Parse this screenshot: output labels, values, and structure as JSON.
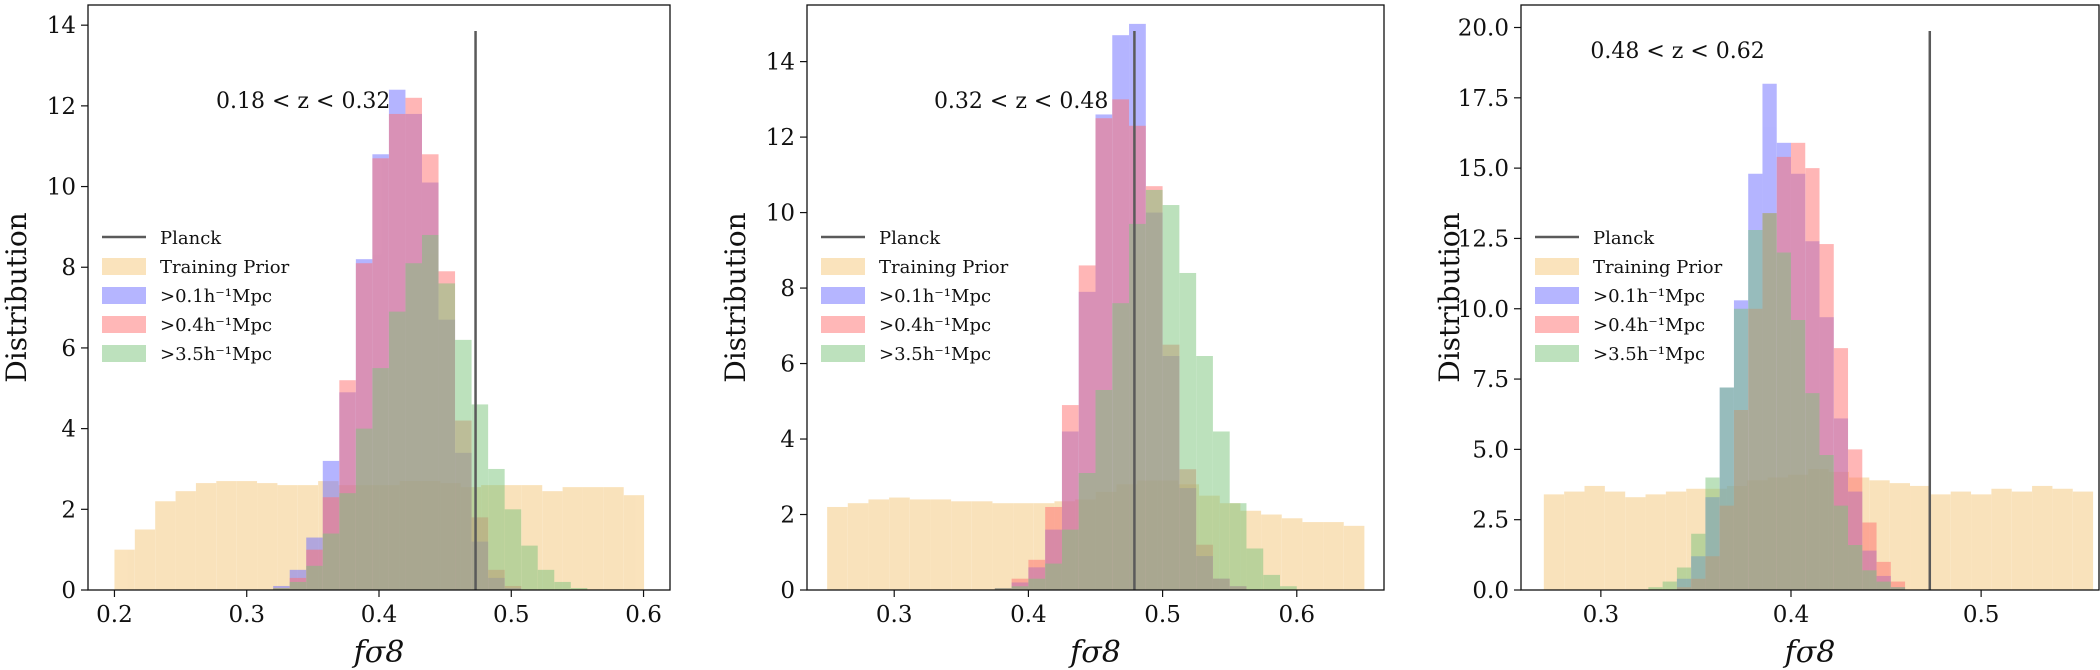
{
  "chart_data": [
    {
      "type": "histogram",
      "panel": "left",
      "title": "0.18 < z < 0.32",
      "xlabel": "fσ8",
      "ylabel": "Distribution",
      "xlim": [
        0.18,
        0.62
      ],
      "ylim": [
        0,
        14.5
      ],
      "xticks": [
        0.2,
        0.3,
        0.4,
        0.5,
        0.6
      ],
      "xtick_labels": [
        "0.2",
        "0.3",
        "0.4",
        "0.5",
        "0.6"
      ],
      "yticks": [
        0,
        2,
        4,
        6,
        8,
        10,
        12,
        14
      ],
      "ytick_labels": [
        "0",
        "2",
        "4",
        "6",
        "8",
        "10",
        "12",
        "14"
      ],
      "planck": 0.473,
      "legend_position": "center-left",
      "series": [
        {
          "name": "Training Prior",
          "color": "#f5c77a",
          "start": 0.2,
          "step": 0.0154,
          "values": [
            1.0,
            1.5,
            2.2,
            2.45,
            2.65,
            2.7,
            2.7,
            2.65,
            2.6,
            2.6,
            2.7,
            2.6,
            2.6,
            2.6,
            2.7,
            2.7,
            2.65,
            2.55,
            2.6,
            2.6,
            2.6,
            2.45,
            2.55,
            2.55,
            2.55,
            2.35
          ]
        },
        {
          "name": ">0.1h⁻¹Mpc",
          "color": "#6b6bff",
          "start": 0.32,
          "step": 0.0125,
          "values": [
            0.1,
            0.5,
            1.3,
            3.2,
            4.9,
            8.2,
            10.8,
            12.4,
            11.8,
            10.1,
            6.7,
            3.4,
            1.2,
            0.3,
            0.05
          ]
        },
        {
          "name": ">0.4h⁻¹Mpc",
          "color": "#ff7070",
          "start": 0.32,
          "step": 0.0125,
          "values": [
            0.05,
            0.3,
            1.0,
            2.3,
            5.2,
            8.1,
            10.7,
            11.8,
            12.2,
            10.8,
            7.9,
            4.2,
            1.8,
            0.5,
            0.1
          ]
        },
        {
          "name": ">3.5h⁻¹Mpc",
          "color": "#7cc47c",
          "start": 0.32,
          "step": 0.0125,
          "values": [
            0.05,
            0.2,
            0.6,
            1.4,
            2.4,
            4.0,
            5.5,
            6.9,
            8.1,
            8.8,
            7.6,
            6.2,
            4.6,
            3.0,
            2.0,
            1.1,
            0.5,
            0.2,
            0.05
          ]
        }
      ]
    },
    {
      "type": "histogram",
      "panel": "middle",
      "title": "0.32 < z < 0.48",
      "xlabel": "fσ8",
      "ylabel": "Distribution",
      "xlim": [
        0.235,
        0.665
      ],
      "ylim": [
        0,
        15.5
      ],
      "xticks": [
        0.3,
        0.4,
        0.5,
        0.6
      ],
      "xtick_labels": [
        "0.3",
        "0.4",
        "0.5",
        "0.6"
      ],
      "yticks": [
        0,
        2,
        4,
        6,
        8,
        10,
        12,
        14
      ],
      "ytick_labels": [
        "0",
        "2",
        "4",
        "6",
        "8",
        "10",
        "12",
        "14"
      ],
      "planck": 0.479,
      "legend_position": "center-left",
      "series": [
        {
          "name": "Training Prior",
          "color": "#f5c77a",
          "start": 0.25,
          "step": 0.0154,
          "values": [
            2.2,
            2.3,
            2.4,
            2.45,
            2.4,
            2.4,
            2.35,
            2.35,
            2.3,
            2.3,
            2.3,
            2.35,
            2.4,
            2.6,
            2.8,
            2.9,
            2.9,
            2.8,
            2.5,
            2.3,
            2.1,
            2.0,
            1.9,
            1.8,
            1.8,
            1.7
          ]
        },
        {
          "name": ">0.1h⁻¹Mpc",
          "color": "#6b6bff",
          "start": 0.375,
          "step": 0.0125,
          "values": [
            0.05,
            0.2,
            0.6,
            1.6,
            4.2,
            7.9,
            12.6,
            14.7,
            15.0,
            10.0,
            6.2,
            2.7,
            0.9,
            0.3,
            0.1
          ]
        },
        {
          "name": ">0.4h⁻¹Mpc",
          "color": "#ff7070",
          "start": 0.375,
          "step": 0.0125,
          "values": [
            0.05,
            0.3,
            0.8,
            2.2,
            4.9,
            8.6,
            12.5,
            13.0,
            12.3,
            10.7,
            6.5,
            3.2,
            1.2,
            0.3,
            0.1
          ]
        },
        {
          "name": ">3.5h⁻¹Mpc",
          "color": "#7cc47c",
          "start": 0.375,
          "step": 0.0125,
          "values": [
            0.05,
            0.1,
            0.3,
            0.7,
            1.6,
            3.1,
            5.3,
            7.6,
            9.7,
            10.6,
            10.2,
            8.4,
            6.2,
            4.2,
            2.3,
            1.1,
            0.4,
            0.1
          ]
        }
      ]
    },
    {
      "type": "histogram",
      "panel": "right",
      "title": "0.48 < z < 0.62",
      "xlabel": "fσ8",
      "ylabel": "Distribution",
      "xlim": [
        0.258,
        0.562
      ],
      "ylim": [
        0,
        20.8
      ],
      "xticks": [
        0.3,
        0.4,
        0.5
      ],
      "xtick_labels": [
        "0.3",
        "0.4",
        "0.5"
      ],
      "yticks": [
        0,
        2.5,
        5,
        7.5,
        10,
        12.5,
        15,
        17.5,
        20
      ],
      "ytick_labels": [
        "0.0",
        "2.5",
        "5.0",
        "7.5",
        "10.0",
        "12.5",
        "15.0",
        "17.5",
        "20.0"
      ],
      "planck": 0.473,
      "legend_position": "center-left",
      "series": [
        {
          "name": "Training Prior",
          "color": "#f5c77a",
          "start": 0.27,
          "step": 0.0107,
          "values": [
            3.4,
            3.5,
            3.7,
            3.5,
            3.3,
            3.4,
            3.5,
            3.6,
            3.6,
            3.7,
            3.9,
            4.0,
            4.1,
            4.3,
            4.2,
            4.0,
            3.9,
            3.8,
            3.7,
            3.4,
            3.5,
            3.4,
            3.6,
            3.5,
            3.7,
            3.6,
            3.5
          ]
        },
        {
          "name": ">0.1h⁻¹Mpc",
          "color": "#6b6bff",
          "start": 0.34,
          "step": 0.0075,
          "values": [
            0.4,
            1.2,
            3.3,
            7.2,
            10.3,
            14.8,
            18.0,
            15.9,
            14.8,
            12.4,
            9.7,
            6.1,
            3.5,
            1.4,
            0.5,
            0.1
          ]
        },
        {
          "name": ">0.4h⁻¹Mpc",
          "color": "#ff7070",
          "start": 0.34,
          "step": 0.0075,
          "values": [
            0.1,
            0.4,
            1.2,
            3.0,
            6.4,
            10.0,
            13.4,
            15.4,
            15.9,
            15.0,
            12.3,
            8.6,
            5.0,
            2.4,
            1.0,
            0.3
          ]
        },
        {
          "name": ">3.5h⁻¹Mpc",
          "color": "#7cc47c",
          "start": 0.325,
          "step": 0.0075,
          "values": [
            0.1,
            0.3,
            0.8,
            2.0,
            4.0,
            7.2,
            10.0,
            12.8,
            13.4,
            12.0,
            9.6,
            7.0,
            4.8,
            3.0,
            1.6,
            0.7,
            0.3,
            0.1
          ]
        }
      ]
    }
  ],
  "legend": {
    "planck_label": "Planck",
    "prior_label": "Training Prior",
    "cut1_label": ">0.1h⁻¹Mpc",
    "cut2_label": ">0.4h⁻¹Mpc",
    "cut3_label": ">3.5h⁻¹Mpc"
  },
  "colors": {
    "planck_line": "#5a5a5a",
    "axis": "#111111",
    "prior": "#f5c77a",
    "cut1": "#6b6bff",
    "cut2": "#ff7070",
    "cut3": "#7cc47c"
  }
}
